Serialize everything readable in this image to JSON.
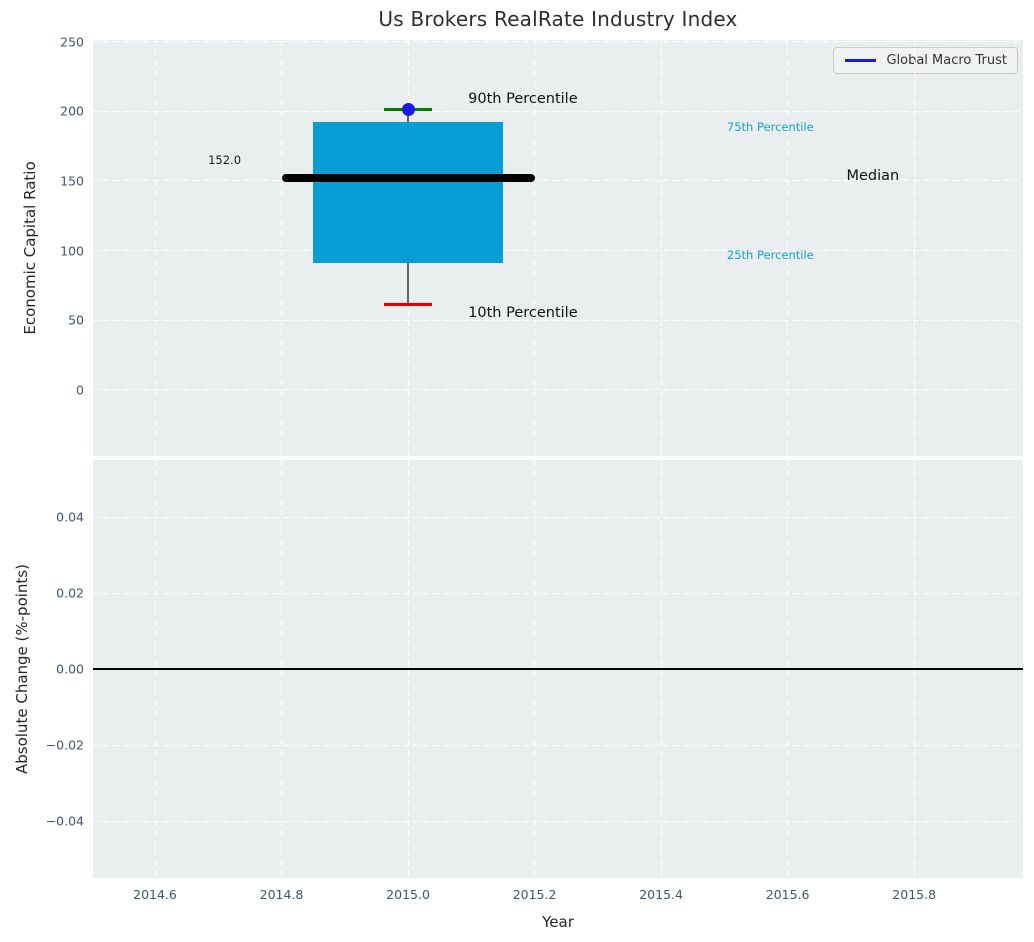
{
  "title": "Us Brokers RealRate Industry Index",
  "legend": {
    "label": "Global Macro Trust",
    "line_color": "#1a1ae6"
  },
  "colors": {
    "axes_bg": "#ebeeef",
    "box_fill": "#089dd4",
    "median": "#000000",
    "whisker": "#666666",
    "cap_90": "#008000",
    "cap_10": "#e60000",
    "company_marker": "#1a1ae6",
    "percentile_text": "#15a1d6",
    "tick_text": "#44546b"
  },
  "chart_data": [
    {
      "type": "boxplot",
      "title": "Us Brokers RealRate Industry Index",
      "ylabel": "Economic Capital Ratio",
      "xlim": [
        2014.502,
        2015.972
      ],
      "ylim": [
        -47.4,
        251.2
      ],
      "grid": "white dashed, on",
      "legend_position": "upper right",
      "yticks": {
        "values": [
          0,
          50,
          100,
          150,
          200,
          250
        ],
        "labels": [
          "0",
          "50",
          "100",
          "150",
          "200",
          "250"
        ]
      },
      "xticks": {
        "values": [
          2014.6,
          2014.8,
          2015.0,
          2015.2,
          2015.4,
          2015.6,
          2015.8
        ],
        "labels": []
      },
      "box": {
        "x": 2015.0,
        "box_width": 0.3,
        "median_line_width": 0.4,
        "cap_width": 0.038,
        "p10": 61,
        "q1": 91,
        "median": 152,
        "q3": 192,
        "p90": 201
      },
      "series": [
        {
          "name": "Global Macro Trust",
          "x": [
            2015.0
          ],
          "y": [
            201
          ],
          "color": "#1a1ae6",
          "marker": "circle"
        }
      ],
      "annotations": [
        {
          "text": "152.0",
          "x": 2014.71,
          "y": 165.0,
          "ha": "center",
          "size": 11.5,
          "color": "#1a1a1a"
        },
        {
          "text": "90th Percentile",
          "x": 2015.095,
          "y": 208.5,
          "ha": "left",
          "size": 14.5,
          "color": "#111111"
        },
        {
          "text": "10th Percentile",
          "x": 2015.095,
          "y": 55.5,
          "ha": "left",
          "size": 14.5,
          "color": "#111111"
        },
        {
          "text": "75th Percentile",
          "x": 2015.504,
          "y": 188.5,
          "ha": "left",
          "size": 11.5,
          "color": "#15a1d6"
        },
        {
          "text": "25th Percentile",
          "x": 2015.504,
          "y": 97.0,
          "ha": "left",
          "size": 11.5,
          "color": "#15a1d6"
        },
        {
          "text": "Median",
          "x": 2015.693,
          "y": 153.5,
          "ha": "left",
          "size": 14.5,
          "color": "#111111"
        }
      ]
    },
    {
      "type": "line",
      "ylabel": "Absolute Change (%-points)",
      "xlabel": "Year",
      "xlim": [
        2014.502,
        2015.972
      ],
      "ylim": [
        -0.055,
        0.055
      ],
      "grid": "white dashed, on",
      "zero_line": 0.0,
      "yticks": {
        "values": [
          0.04,
          0.02,
          0.0,
          -0.02,
          -0.04
        ],
        "labels": [
          "0.04",
          "0.02",
          "0.00",
          "−0.02",
          "−0.04"
        ]
      },
      "xticks": {
        "values": [
          2014.6,
          2014.8,
          2015.0,
          2015.2,
          2015.4,
          2015.6,
          2015.8
        ],
        "labels": [
          "2014.6",
          "2014.8",
          "2015.0",
          "2015.2",
          "2015.4",
          "2015.6",
          "2015.8"
        ]
      },
      "series": []
    }
  ]
}
